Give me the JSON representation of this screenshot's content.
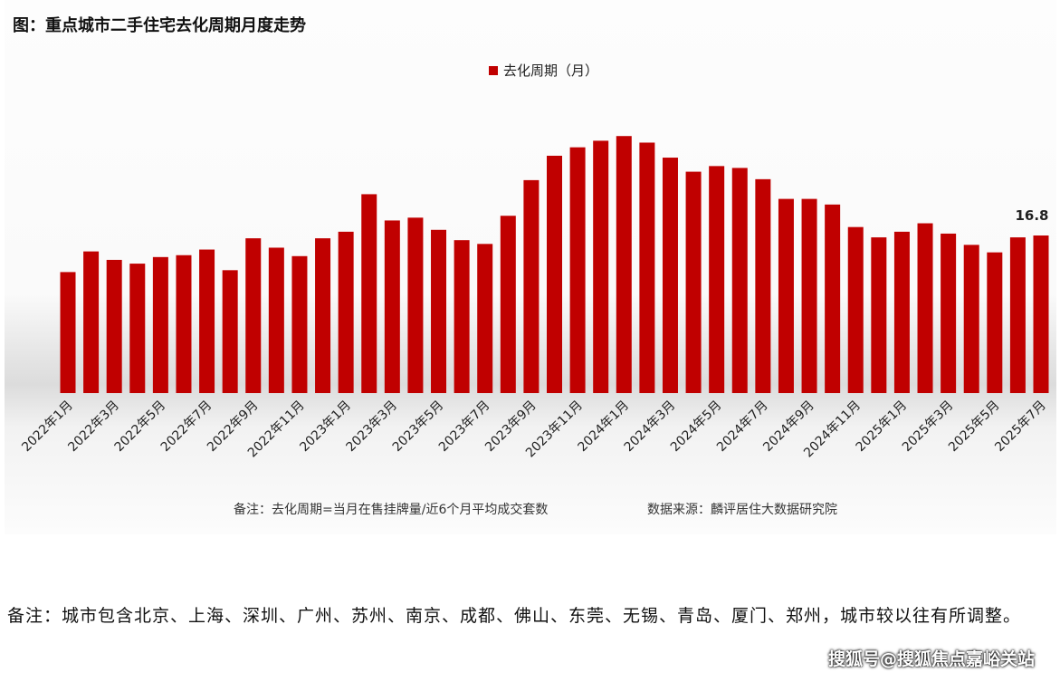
{
  "title": "图：重点城市二手住宅去化周期月度走势",
  "note": "备注：去化周期=当月在售挂牌量/近6个月平均成交套数",
  "source": "数据来源：麟评居住大数据研究院",
  "footnote": "备注：城市包含北京、上海、深圳、广州、苏州、南京、成都、佛山、东莞、无锡、青岛、厦门、郑州，城市较以往有所调整。",
  "watermark": "搜狐号@搜狐焦点嘉峪关站",
  "chart_data": {
    "type": "bar",
    "title": "图：重点城市二手住宅去化周期月度走势",
    "legend_position": "top",
    "grid": false,
    "bar_color": "#c00000",
    "series": [
      {
        "name": "去化周期（月）",
        "values": [
          12.9,
          15.1,
          14.2,
          13.8,
          14.5,
          14.7,
          15.3,
          13.1,
          16.5,
          15.5,
          14.6,
          16.5,
          17.2,
          21.2,
          18.4,
          18.7,
          17.4,
          16.3,
          15.9,
          18.9,
          22.7,
          25.3,
          26.2,
          26.9,
          27.4,
          26.7,
          25.1,
          23.6,
          24.2,
          24.0,
          22.8,
          20.7,
          20.7,
          20.1,
          17.7,
          16.6,
          17.2,
          18.1,
          17.0,
          15.8,
          15.0,
          16.6,
          16.8
        ]
      }
    ],
    "categories": [
      "2022年1月",
      "2022年2月",
      "2022年3月",
      "2022年4月",
      "2022年5月",
      "2022年6月",
      "2022年7月",
      "2022年8月",
      "2022年9月",
      "2022年10月",
      "2022年11月",
      "2022年12月",
      "2023年1月",
      "2023年2月",
      "2023年3月",
      "2023年4月",
      "2023年5月",
      "2023年6月",
      "2023年7月",
      "2023年8月",
      "2023年9月",
      "2023年10月",
      "2023年11月",
      "2023年12月",
      "2024年1月",
      "2024年2月",
      "2024年3月",
      "2024年4月",
      "2024年5月",
      "2024年6月",
      "2024年7月",
      "2024年8月",
      "2024年9月",
      "2024年10月",
      "2024年11月",
      "2024年12月",
      "2025年1月",
      "2025年2月",
      "2025年3月",
      "2025年4月",
      "2025年5月",
      "2025年6月",
      "2025年7月"
    ],
    "tick_labels": [
      "2022年1月",
      "2022年3月",
      "2022年5月",
      "2022年7月",
      "2022年9月",
      "2022年11月",
      "2023年1月",
      "2023年3月",
      "2023年5月",
      "2023年7月",
      "2023年9月",
      "2023年11月",
      "2024年1月",
      "2024年3月",
      "2024年5月",
      "2024年7月",
      "2024年9月",
      "2024年11月",
      "2025年1月",
      "2025年3月",
      "2025年5月",
      "2025年7月"
    ],
    "data_labels": [
      {
        "index": 42,
        "text": "16.8"
      }
    ],
    "ylim": [
      0,
      30
    ]
  }
}
